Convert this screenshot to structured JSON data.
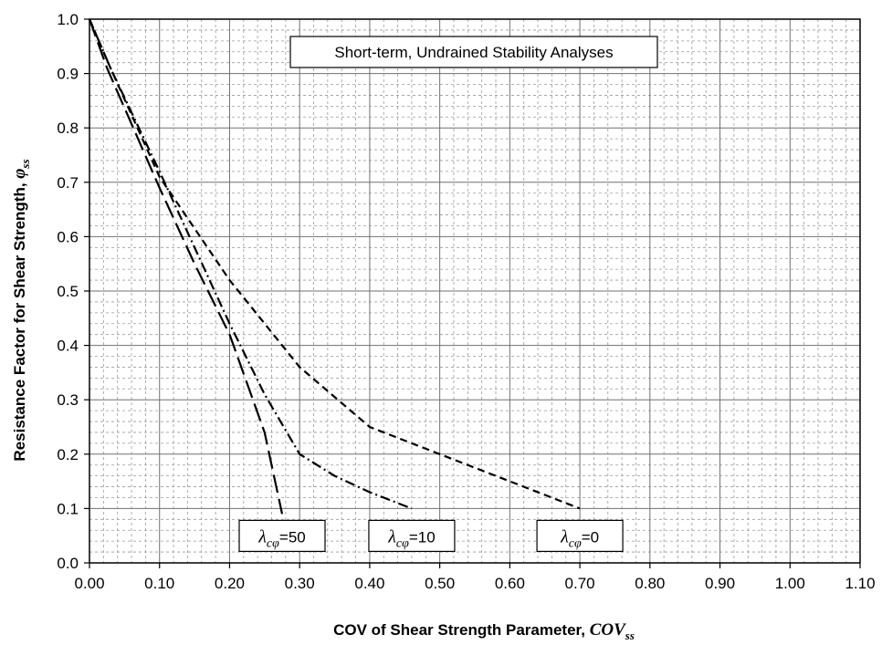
{
  "chart_data": {
    "type": "line",
    "title": "Short-term, Undrained Stability Analyses",
    "xlabel": {
      "text": "COV of Shear Strength Parameter, ",
      "symbol": "COV",
      "subscript": "ss"
    },
    "ylabel": {
      "text": "Resistance Factor for Shear Strength, ",
      "symbol": "φ",
      "subscript": "ss"
    },
    "xlim": [
      0,
      1.1
    ],
    "ylim": [
      0,
      1.0
    ],
    "xticks": [
      "0.00",
      "0.10",
      "0.20",
      "0.30",
      "0.40",
      "0.50",
      "0.60",
      "0.70",
      "0.80",
      "0.90",
      "1.00",
      "1.10"
    ],
    "yticks": [
      "0.0",
      "0.1",
      "0.2",
      "0.3",
      "0.4",
      "0.5",
      "0.6",
      "0.7",
      "0.8",
      "0.9",
      "1.0"
    ],
    "grid": {
      "major": true,
      "minor": true
    },
    "series": [
      {
        "name": "λcφ=0",
        "label_symbol": "λ",
        "label_subscript": "cφ",
        "label_value": "=0",
        "dash": "short-dash",
        "points": [
          [
            0,
            1.0
          ],
          [
            0.03,
            0.91
          ],
          [
            0.1,
            0.71
          ],
          [
            0.2,
            0.52
          ],
          [
            0.3,
            0.36
          ],
          [
            0.4,
            0.25
          ],
          [
            0.5,
            0.2
          ],
          [
            0.6,
            0.15
          ],
          [
            0.7,
            0.1
          ]
        ]
      },
      {
        "name": "λcφ=10",
        "label_symbol": "λ",
        "label_subscript": "cφ",
        "label_value": "=10",
        "dash": "dash-dot",
        "points": [
          [
            0,
            1.0
          ],
          [
            0.03,
            0.91
          ],
          [
            0.1,
            0.72
          ],
          [
            0.15,
            0.58
          ],
          [
            0.2,
            0.44
          ],
          [
            0.25,
            0.31
          ],
          [
            0.3,
            0.2
          ],
          [
            0.35,
            0.16
          ],
          [
            0.4,
            0.13
          ],
          [
            0.46,
            0.1
          ]
        ]
      },
      {
        "name": "λcφ=50",
        "label_symbol": "λ",
        "label_subscript": "cφ",
        "label_value": "=50",
        "dash": "long-dash",
        "points": [
          [
            0,
            1.0
          ],
          [
            0.025,
            0.91
          ],
          [
            0.1,
            0.69
          ],
          [
            0.15,
            0.55
          ],
          [
            0.2,
            0.42
          ],
          [
            0.25,
            0.24
          ],
          [
            0.275,
            0.09
          ]
        ]
      }
    ]
  }
}
